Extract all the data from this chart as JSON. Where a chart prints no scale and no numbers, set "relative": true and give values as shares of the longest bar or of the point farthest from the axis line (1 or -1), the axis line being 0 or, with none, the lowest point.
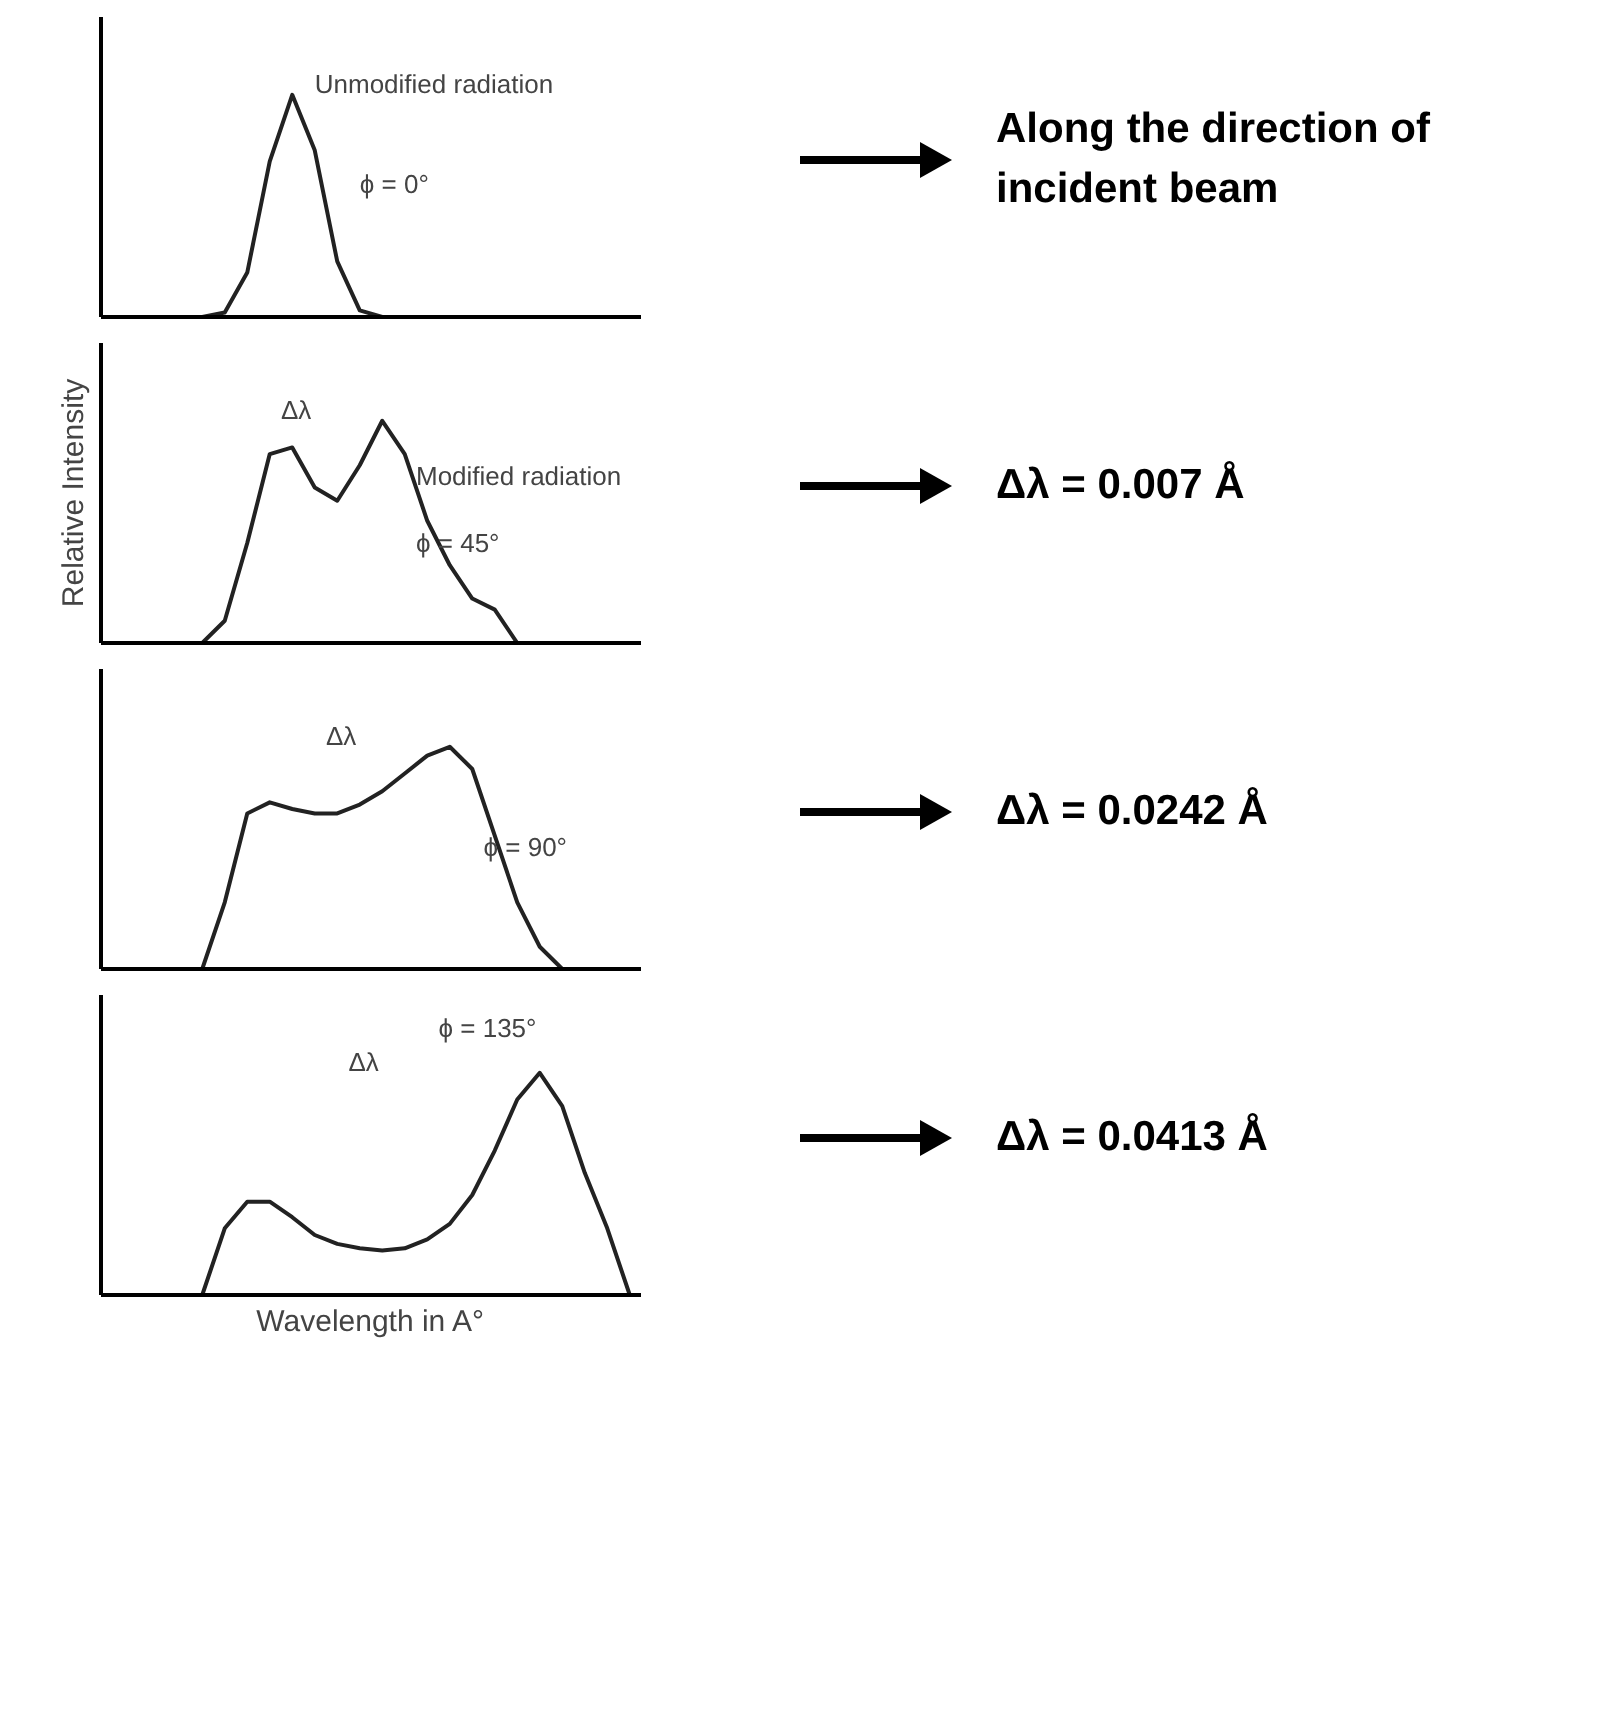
{
  "chart_data": [
    {
      "type": "line",
      "relative": true,
      "categories": [
        null,
        null,
        null,
        null,
        null,
        null,
        null,
        null,
        null,
        null,
        null,
        null,
        null,
        null,
        null,
        null,
        null,
        null,
        null,
        null,
        null,
        null,
        null,
        null
      ],
      "series": [
        {
          "color": "#222222",
          "values": [
            0,
            0,
            0,
            0,
            0,
            0.02,
            0.2,
            0.7,
            1,
            0.75,
            0.25,
            0.03,
            0,
            0,
            0,
            0,
            0,
            0,
            0,
            0,
            0,
            0,
            0,
            0
          ]
        }
      ],
      "annotations": [
        "Unmodified radiation",
        "ϕ = 0°",
        "Along the direction of incident beam"
      ]
    },
    {
      "type": "line",
      "relative": true,
      "ylabel": "Relative Intensity",
      "categories": [
        null,
        null,
        null,
        null,
        null,
        null,
        null,
        null,
        null,
        null,
        null,
        null,
        null,
        null,
        null,
        null,
        null,
        null,
        null,
        null,
        null,
        null,
        null,
        null
      ],
      "series": [
        {
          "color": "#222222",
          "values": [
            0,
            0,
            0,
            0,
            0,
            0.1,
            0.45,
            0.85,
            0.88,
            0.7,
            0.64,
            0.8,
            1,
            0.85,
            0.55,
            0.35,
            0.2,
            0.15,
            0,
            0,
            0,
            0,
            0,
            0
          ]
        }
      ],
      "annotations": [
        "Δλ",
        "Modified radiation",
        "ϕ = 45°",
        "Δλ = 0.007 Å"
      ]
    },
    {
      "type": "line",
      "relative": true,
      "categories": [
        null,
        null,
        null,
        null,
        null,
        null,
        null,
        null,
        null,
        null,
        null,
        null,
        null,
        null,
        null,
        null,
        null,
        null,
        null,
        null,
        null,
        null,
        null,
        null
      ],
      "series": [
        {
          "color": "#222222",
          "values": [
            0,
            0,
            0,
            0,
            0,
            0.3,
            0.7,
            0.75,
            0.72,
            0.7,
            0.7,
            0.74,
            0.8,
            0.88,
            0.96,
            1,
            0.9,
            0.6,
            0.3,
            0.1,
            0,
            0,
            0,
            0
          ]
        }
      ],
      "annotations": [
        "Δλ",
        "ϕ = 90°",
        "Δλ = 0.0242 Å"
      ]
    },
    {
      "type": "line",
      "relative": true,
      "xlabel": "Wavelength in A°",
      "categories": [
        null,
        null,
        null,
        null,
        null,
        null,
        null,
        null,
        null,
        null,
        null,
        null,
        null,
        null,
        null,
        null,
        null,
        null,
        null,
        null,
        null,
        null,
        null,
        null
      ],
      "series": [
        {
          "color": "#222222",
          "values": [
            0,
            0,
            0,
            0,
            0,
            0.3,
            0.42,
            0.42,
            0.35,
            0.27,
            0.23,
            0.21,
            0.2,
            0.21,
            0.25,
            0.32,
            0.45,
            0.65,
            0.88,
            1,
            0.85,
            0.55,
            0.3,
            0
          ]
        }
      ],
      "annotations": [
        "Δλ",
        "ϕ = 135°",
        "Δλ = 0.0413 Å"
      ]
    }
  ]
}
